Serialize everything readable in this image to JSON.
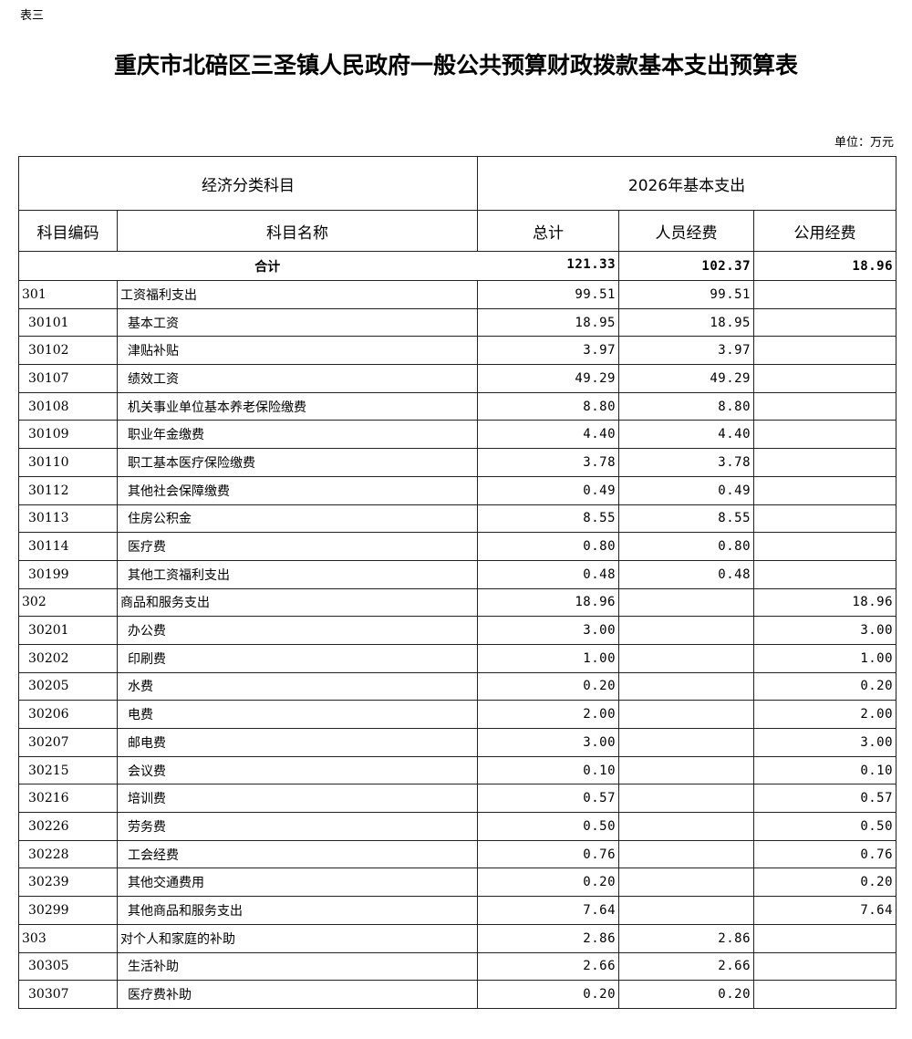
{
  "tag": "表三",
  "title": "重庆市北碚区三圣镇人民政府一般公共预算财政拨款基本支出预算表",
  "unit": "单位：万元",
  "header": {
    "group1": "经济分类科目",
    "group2": "2026年基本支出",
    "code": "科目编码",
    "name": "科目名称",
    "total": "总计",
    "personnel": "人员经费",
    "public": "公用经费"
  },
  "total_row": {
    "label": "合计",
    "total": "121.33",
    "personnel": "102.37",
    "public": "18.96"
  },
  "rows": [
    {
      "code": "301",
      "name": "工资福利支出",
      "total": "99.51",
      "personnel": "99.51",
      "public": "",
      "level": 1
    },
    {
      "code": "30101",
      "name": "基本工资",
      "total": "18.95",
      "personnel": "18.95",
      "public": "",
      "level": 2
    },
    {
      "code": "30102",
      "name": "津贴补贴",
      "total": "3.97",
      "personnel": "3.97",
      "public": "",
      "level": 2
    },
    {
      "code": "30107",
      "name": "绩效工资",
      "total": "49.29",
      "personnel": "49.29",
      "public": "",
      "level": 2
    },
    {
      "code": "30108",
      "name": "机关事业单位基本养老保险缴费",
      "total": "8.80",
      "personnel": "8.80",
      "public": "",
      "level": 2
    },
    {
      "code": "30109",
      "name": "职业年金缴费",
      "total": "4.40",
      "personnel": "4.40",
      "public": "",
      "level": 2
    },
    {
      "code": "30110",
      "name": "职工基本医疗保险缴费",
      "total": "3.78",
      "personnel": "3.78",
      "public": "",
      "level": 2
    },
    {
      "code": "30112",
      "name": "其他社会保障缴费",
      "total": "0.49",
      "personnel": "0.49",
      "public": "",
      "level": 2
    },
    {
      "code": "30113",
      "name": "住房公积金",
      "total": "8.55",
      "personnel": "8.55",
      "public": "",
      "level": 2
    },
    {
      "code": "30114",
      "name": "医疗费",
      "total": "0.80",
      "personnel": "0.80",
      "public": "",
      "level": 2
    },
    {
      "code": "30199",
      "name": "其他工资福利支出",
      "total": "0.48",
      "personnel": "0.48",
      "public": "",
      "level": 2
    },
    {
      "code": "302",
      "name": "商品和服务支出",
      "total": "18.96",
      "personnel": "",
      "public": "18.96",
      "level": 1
    },
    {
      "code": "30201",
      "name": "办公费",
      "total": "3.00",
      "personnel": "",
      "public": "3.00",
      "level": 2
    },
    {
      "code": "30202",
      "name": "印刷费",
      "total": "1.00",
      "personnel": "",
      "public": "1.00",
      "level": 2
    },
    {
      "code": "30205",
      "name": "水费",
      "total": "0.20",
      "personnel": "",
      "public": "0.20",
      "level": 2
    },
    {
      "code": "30206",
      "name": "电费",
      "total": "2.00",
      "personnel": "",
      "public": "2.00",
      "level": 2
    },
    {
      "code": "30207",
      "name": "邮电费",
      "total": "3.00",
      "personnel": "",
      "public": "3.00",
      "level": 2
    },
    {
      "code": "30215",
      "name": "会议费",
      "total": "0.10",
      "personnel": "",
      "public": "0.10",
      "level": 2
    },
    {
      "code": "30216",
      "name": "培训费",
      "total": "0.57",
      "personnel": "",
      "public": "0.57",
      "level": 2
    },
    {
      "code": "30226",
      "name": "劳务费",
      "total": "0.50",
      "personnel": "",
      "public": "0.50",
      "level": 2
    },
    {
      "code": "30228",
      "name": "工会经费",
      "total": "0.76",
      "personnel": "",
      "public": "0.76",
      "level": 2
    },
    {
      "code": "30239",
      "name": "其他交通费用",
      "total": "0.20",
      "personnel": "",
      "public": "0.20",
      "level": 2
    },
    {
      "code": "30299",
      "name": "其他商品和服务支出",
      "total": "7.64",
      "personnel": "",
      "public": "7.64",
      "level": 2
    },
    {
      "code": "303",
      "name": "对个人和家庭的补助",
      "total": "2.86",
      "personnel": "2.86",
      "public": "",
      "level": 1
    },
    {
      "code": "30305",
      "name": "生活补助",
      "total": "2.66",
      "personnel": "2.66",
      "public": "",
      "level": 2
    },
    {
      "code": "30307",
      "name": "医疗费补助",
      "total": "0.20",
      "personnel": "0.20",
      "public": "",
      "level": 2
    }
  ]
}
